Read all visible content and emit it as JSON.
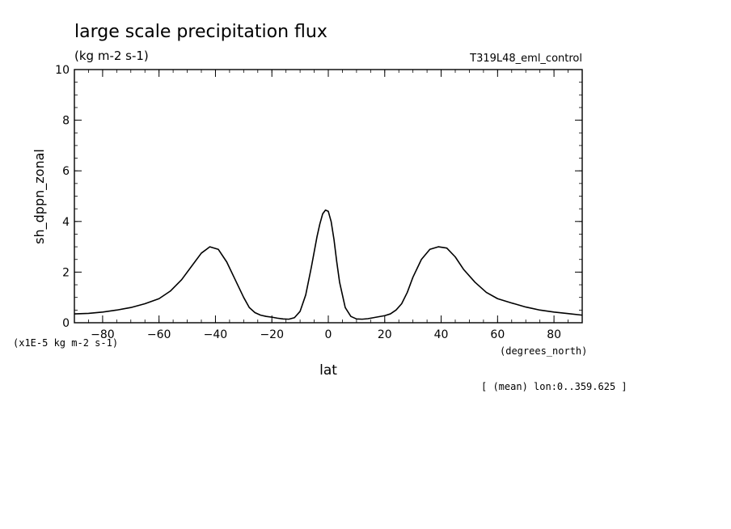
{
  "chart_data": {
    "type": "line",
    "title": "large scale precipitation flux",
    "units": "(kg m-2 s-1)",
    "run_label": "T319L48_eml_control",
    "ylabel": "sh_dppn_zonal",
    "y_scale_note": "(x1E-5 kg m-2 s-1)",
    "xlabel": "lat",
    "x_units": "(degrees_north)",
    "footnote": "[ (mean) lon:0..359.625 ]",
    "xlim": [
      -90,
      90
    ],
    "ylim": [
      0,
      10
    ],
    "x_ticks": [
      -80,
      -60,
      -40,
      -20,
      0,
      20,
      40,
      60,
      80
    ],
    "y_ticks": [
      0,
      2,
      4,
      6,
      8,
      10
    ],
    "grid": false,
    "series": [
      {
        "x": [
          -90,
          -85,
          -80,
          -75,
          -70,
          -65,
          -60,
          -56,
          -52,
          -48,
          -45,
          -42,
          -39,
          -36,
          -33,
          -30,
          -28,
          -26,
          -24,
          -22,
          -20,
          -18,
          -16,
          -14,
          -12,
          -10,
          -8,
          -6,
          -4,
          -3,
          -2,
          -1,
          0,
          1,
          2,
          3,
          4,
          6,
          8,
          10,
          12,
          14,
          16,
          18,
          20,
          22,
          24,
          26,
          28,
          30,
          33,
          36,
          39,
          42,
          45,
          48,
          52,
          56,
          60,
          65,
          70,
          75,
          80,
          85,
          90
        ],
        "y": [
          0.35,
          0.37,
          0.42,
          0.5,
          0.6,
          0.75,
          0.95,
          1.25,
          1.7,
          2.3,
          2.75,
          3.0,
          2.9,
          2.4,
          1.7,
          1.0,
          0.6,
          0.4,
          0.3,
          0.25,
          0.22,
          0.18,
          0.15,
          0.14,
          0.2,
          0.45,
          1.1,
          2.2,
          3.4,
          3.9,
          4.3,
          4.45,
          4.4,
          4.0,
          3.3,
          2.4,
          1.6,
          0.6,
          0.25,
          0.15,
          0.14,
          0.16,
          0.2,
          0.24,
          0.28,
          0.35,
          0.5,
          0.75,
          1.2,
          1.8,
          2.5,
          2.9,
          3.0,
          2.95,
          2.6,
          2.1,
          1.6,
          1.2,
          0.95,
          0.78,
          0.62,
          0.5,
          0.42,
          0.36,
          0.3
        ]
      }
    ]
  }
}
